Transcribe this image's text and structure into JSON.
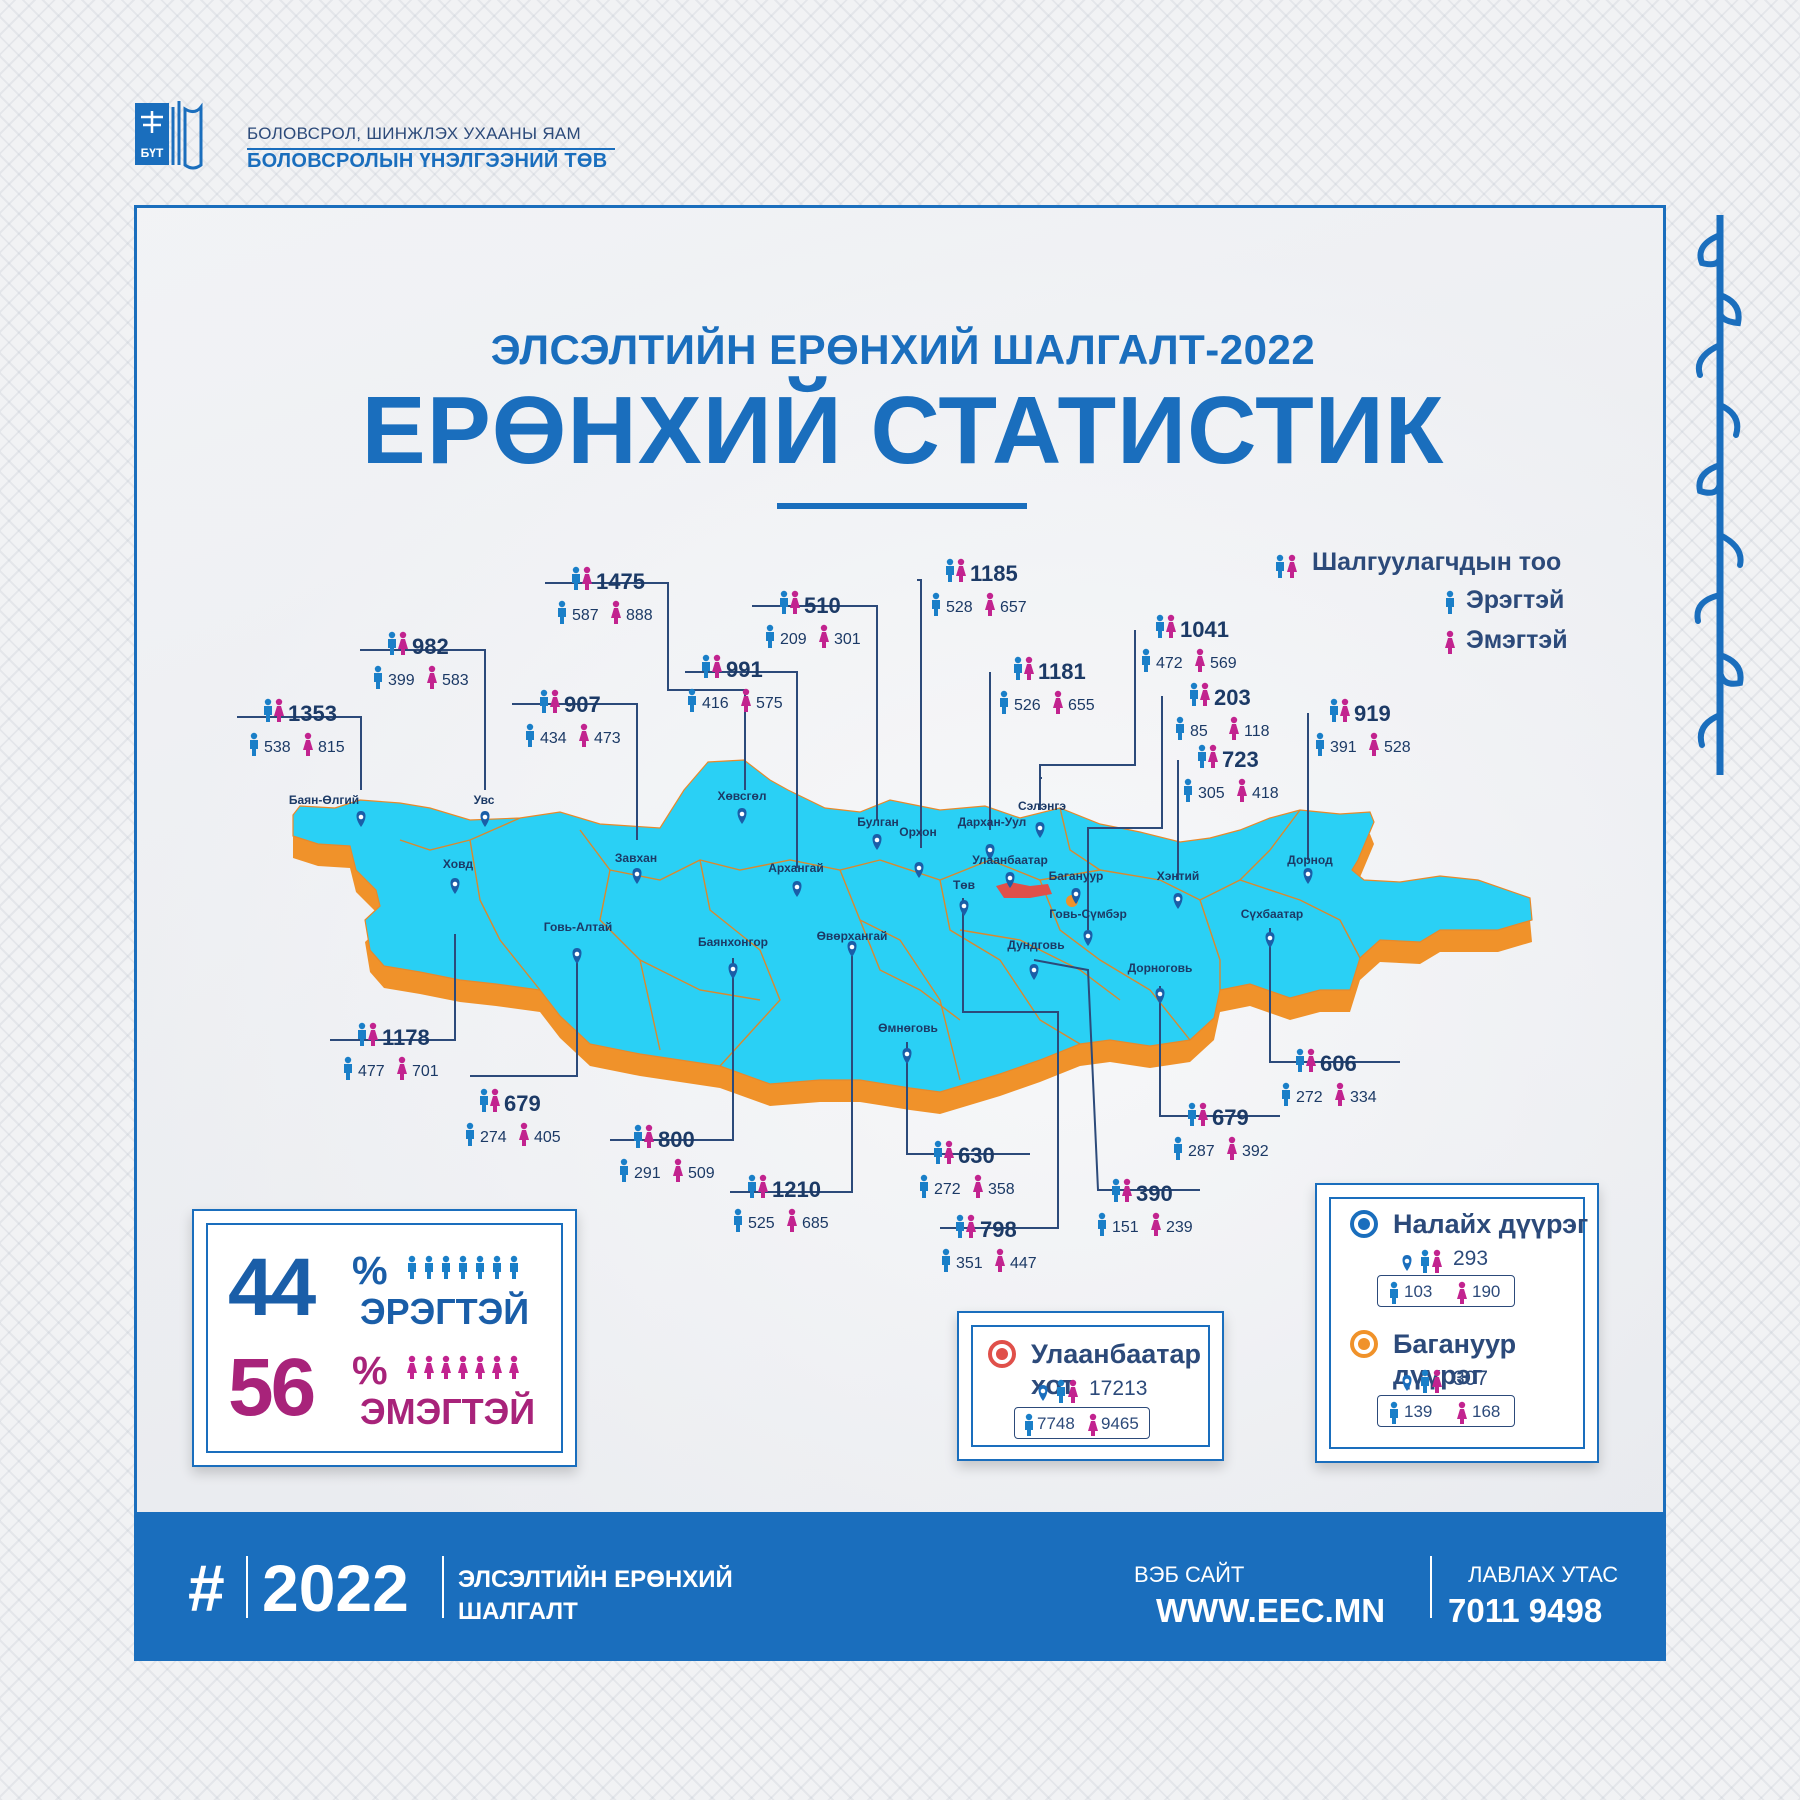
{
  "header": {
    "logo_text": "БҮТ",
    "ministry": "БОЛОВСРОЛ, ШИНЖЛЭХ УХААНЫ ЯАМ",
    "center": "БОЛОВСРОЛЫН ҮНЭЛГЭЭНИЙ ТӨВ"
  },
  "title": {
    "subtitle": "ЭЛСЭЛТИЙН ЕРӨНХИЙ ШАЛГАЛТ-2022",
    "main": "ЕРӨНХИЙ СТАТИСТИК"
  },
  "legend": {
    "total_label": "Шалгуулагчдын тоо",
    "male_label": "Эрэгтэй",
    "female_label": "Эмэгтэй"
  },
  "colors": {
    "brand_blue": "#1a6ebd",
    "map_fill": "#2ad0f5",
    "map_edge": "#f0922a",
    "male": "#1a7fc8",
    "female": "#c2238f",
    "ulaanbaatar": "#e0504a",
    "baganuur": "#f0922a",
    "nalaikh": "#1a6ebd"
  },
  "provinces": [
    {
      "name": "Баян-Өлгий",
      "total": "1353",
      "male": "538",
      "female": "815"
    },
    {
      "name": "Увс",
      "total": "982",
      "male": "399",
      "female": "583"
    },
    {
      "name": "Завхан",
      "total": "907",
      "male": "434",
      "female": "473"
    },
    {
      "name": "Хөвсгөл",
      "total": "1475",
      "male": "587",
      "female": "888"
    },
    {
      "name": "Архангай",
      "total": "991",
      "male": "416",
      "female": "575"
    },
    {
      "name": "Булган",
      "total": "510",
      "male": "209",
      "female": "301"
    },
    {
      "name": "Орхон",
      "total": "1185",
      "male": "528",
      "female": "657"
    },
    {
      "name": "Дархан-Уул",
      "total": "1181",
      "male": "526",
      "female": "655"
    },
    {
      "name": "Сэлэнгэ",
      "total": "1041",
      "male": "472",
      "female": "569"
    },
    {
      "name": "Говь-Сүмбэр",
      "total": "203",
      "male": "85",
      "female": "118"
    },
    {
      "name": "Хэнтий",
      "total": "723",
      "male": "305",
      "female": "418"
    },
    {
      "name": "Дорнод",
      "total": "919",
      "male": "391",
      "female": "528"
    },
    {
      "name": "Ховд",
      "total": "1178",
      "male": "477",
      "female": "701"
    },
    {
      "name": "Говь-Алтай",
      "total": "679",
      "male": "274",
      "female": "405"
    },
    {
      "name": "Баянхонгор",
      "total": "800",
      "male": "291",
      "female": "509"
    },
    {
      "name": "Өвөрхангай",
      "total": "1210",
      "male": "525",
      "female": "685"
    },
    {
      "name": "Өмнөговь",
      "total": "630",
      "male": "272",
      "female": "358"
    },
    {
      "name": "Төв",
      "total": "798",
      "male": "351",
      "female": "447"
    },
    {
      "name": "Дундговь",
      "total": "390",
      "male": "151",
      "female": "239"
    },
    {
      "name": "Дорноговь",
      "total": "679",
      "male": "287",
      "female": "392"
    },
    {
      "name": "Сүхбаатар",
      "total": "606",
      "male": "272",
      "female": "334"
    }
  ],
  "city_labels": {
    "ulaanbaatar": "Улаанбаатар",
    "baganuur": "Багануур"
  },
  "gender_share": {
    "male_pct": "44",
    "male_label": "ЭРЭГТЭЙ",
    "female_pct": "56",
    "female_label": "ЭМЭГТЭЙ",
    "pct_sign": "%"
  },
  "ulaanbaatar_box": {
    "name": "Улаанбаатар хот",
    "total": "17213",
    "male": "7748",
    "female": "9465"
  },
  "districts": [
    {
      "name": "Налайх дүүрэг",
      "total": "293",
      "male": "103",
      "female": "190"
    },
    {
      "name": "Багануур дүүрэг",
      "total": "307",
      "male": "139",
      "female": "168"
    }
  ],
  "footer": {
    "hash": "#",
    "year": "2022",
    "exam_label": "ЭЛСЭЛТИЙН ЕРӨНХИЙ ШАЛГАЛТ",
    "website_label": "ВЭБ САЙТ",
    "website": "WWW.EEC.MN",
    "phone_label": "ЛАВЛАХ УТАС",
    "phone": "7011 9498"
  }
}
